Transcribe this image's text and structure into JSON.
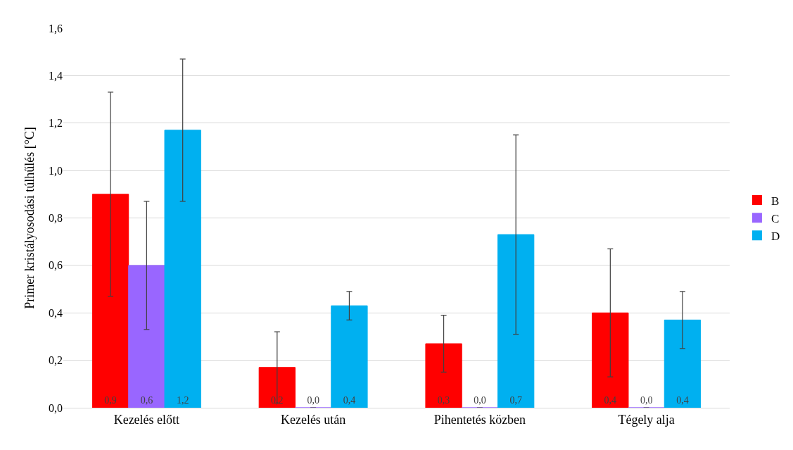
{
  "chart_data": {
    "type": "bar",
    "ylabel": "Primer kristályosodási túlhűlés [°C]",
    "categories": [
      "Kezelés előtt",
      "Kezelés után",
      "Pihentetés közben",
      "Tégely alja"
    ],
    "series": [
      {
        "name": "B",
        "color": "#ff0000",
        "values": [
          0.9,
          0.17,
          0.27,
          0.4
        ],
        "errors": [
          0.43,
          0.15,
          0.12,
          0.27
        ],
        "value_labels": [
          "0,9",
          "0,2",
          "0,3",
          "0,4"
        ]
      },
      {
        "name": "C",
        "color": "#9966ff",
        "values": [
          0.6,
          0,
          0,
          0
        ],
        "errors": [
          0.27,
          null,
          null,
          null
        ],
        "value_labels": [
          "0,6",
          "0,0",
          "0,0",
          "0,0"
        ]
      },
      {
        "name": "D",
        "color": "#00b0f0",
        "values": [
          1.17,
          0.43,
          0.73,
          0.37
        ],
        "errors": [
          0.3,
          0.06,
          0.42,
          0.12
        ],
        "value_labels": [
          "1,2",
          "0,4",
          "0,7",
          "0,4"
        ]
      }
    ],
    "ylim": [
      0,
      1.6
    ],
    "yticks": [
      {
        "value": 0,
        "label": "0,0"
      },
      {
        "value": 0.2,
        "label": "0,2"
      },
      {
        "value": 0.4,
        "label": "0,4"
      },
      {
        "value": 0.6,
        "label": "0,6"
      },
      {
        "value": 0.8,
        "label": "0,8"
      },
      {
        "value": 1.0,
        "label": "1,0"
      },
      {
        "value": 1.2,
        "label": "1,2"
      },
      {
        "value": 1.4,
        "label": "1,4"
      },
      {
        "value": 1.6,
        "label": "1,6"
      }
    ],
    "grid": "y",
    "legend": "right"
  }
}
